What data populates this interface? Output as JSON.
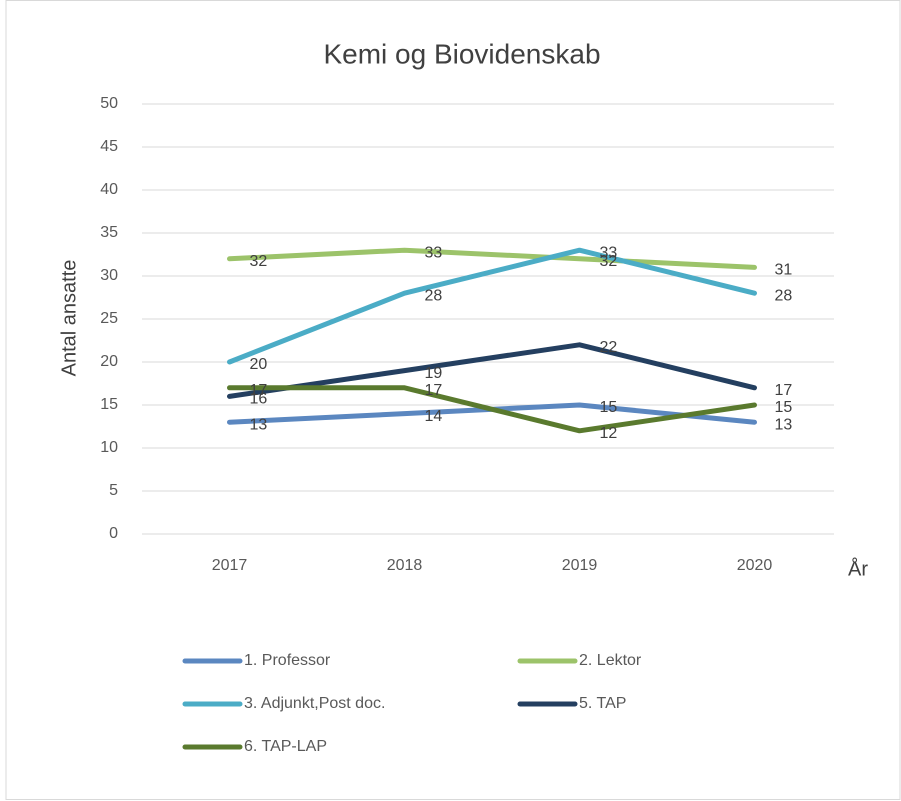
{
  "chart_data": {
    "type": "line",
    "title": "Kemi og Biovidenskab",
    "y_label": "Antal ansatte",
    "x_label": "År",
    "categories": [
      "2017",
      "2018",
      "2019",
      "2020"
    ],
    "series": [
      {
        "name": "1. Professor",
        "color": "#5b87c0",
        "values": [
          13,
          14,
          15,
          13
        ]
      },
      {
        "name": "2. Lektor",
        "color": "#9cc36a",
        "values": [
          32,
          33,
          32,
          31
        ]
      },
      {
        "name": "3. Adjunkt,Post doc.",
        "color": "#4bacc6",
        "values": [
          20,
          28,
          33,
          28
        ]
      },
      {
        "name": "5. TAP",
        "color": "#243f60",
        "values": [
          16,
          19,
          22,
          17
        ]
      },
      {
        "name": "6. TAP-LAP",
        "color": "#5a7a2e",
        "values": [
          17,
          17,
          12,
          15
        ]
      }
    ],
    "ylim": [
      0,
      50
    ],
    "yticks": [
      0,
      5,
      10,
      15,
      20,
      25,
      30,
      35,
      40,
      45,
      50
    ],
    "grid": true,
    "legend": "bottom"
  }
}
